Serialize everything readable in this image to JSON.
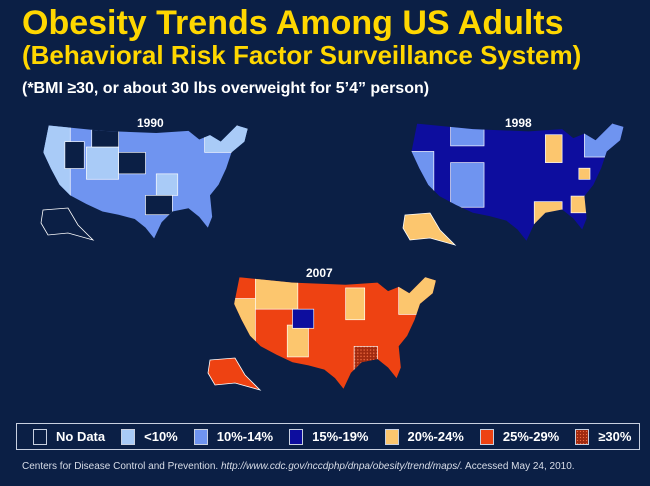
{
  "title": "Obesity Trends Among US Adults",
  "subtitle": "(Behavioral Risk Factor Surveillance System)",
  "note": "(*BMI ≥30, or about 30 lbs overweight for 5’4” person)",
  "maps": [
    {
      "year": "1990",
      "predominant": "10%-14%"
    },
    {
      "year": "1998",
      "predominant": "15%-19%"
    },
    {
      "year": "2007",
      "predominant": "25%-29%"
    }
  ],
  "legend": [
    {
      "label": "No Data",
      "color": "#0b1f45"
    },
    {
      "label": "<10%",
      "color": "#a9cbf7"
    },
    {
      "label": "10%-14%",
      "color": "#6f94f0"
    },
    {
      "label": "15%-19%",
      "color": "#0d0d9e"
    },
    {
      "label": "20%-24%",
      "color": "#fcc66e"
    },
    {
      "label": "25%-29%",
      "color": "#ee4212"
    },
    {
      "label": "≥30%",
      "color": "#a02a10"
    }
  ],
  "source": {
    "org": "Centers for Disease Control and Prevention.",
    "url": "http://www.cdc.gov/nccdphp/dnpa/obesity/trend/maps/.",
    "accessed": "Accessed May 24, 2010."
  }
}
